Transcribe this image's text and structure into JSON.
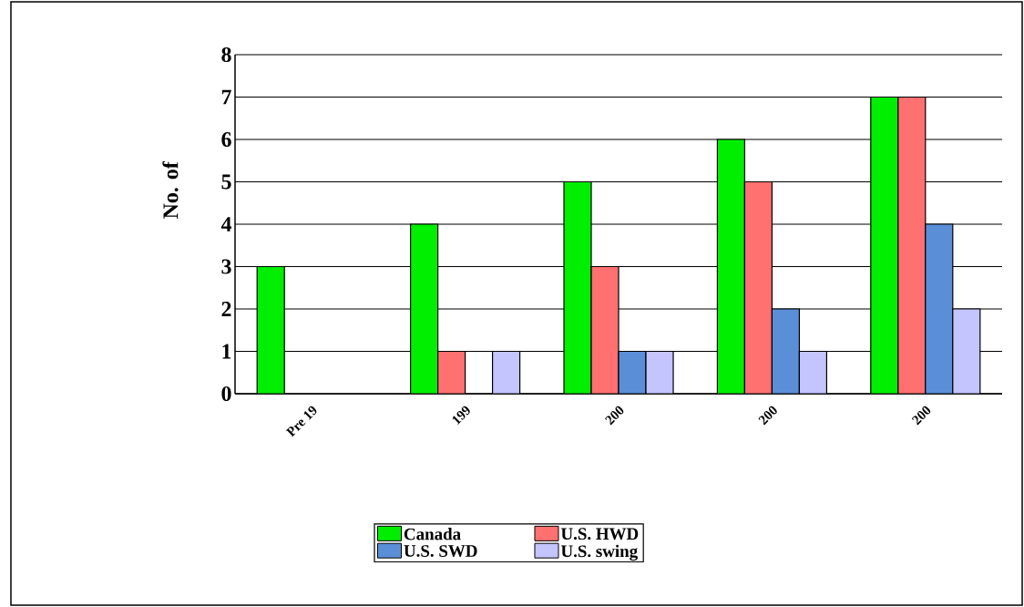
{
  "chart_data": {
    "type": "bar",
    "ylabel": "No. of",
    "categories": [
      "Pre 19",
      "199",
      "200",
      "200",
      "200"
    ],
    "series": [
      {
        "name": "Canada",
        "color": "#00ee00",
        "values": [
          3,
          4,
          5,
          6,
          7
        ]
      },
      {
        "name": "U.S. HWD",
        "color": "#ff7070",
        "values": [
          null,
          1,
          3,
          5,
          7
        ]
      },
      {
        "name": "U.S. SWD",
        "color": "#5a8fd8",
        "values": [
          null,
          null,
          1,
          2,
          4
        ]
      },
      {
        "name": "U.S. swing",
        "color": "#c4c4ff",
        "values": [
          null,
          1,
          1,
          1,
          2
        ]
      }
    ],
    "ylim": [
      0,
      8
    ],
    "yticks": [
      0,
      1,
      2,
      3,
      4,
      5,
      6,
      7,
      8
    ],
    "grid": "y",
    "legend": "bottom"
  }
}
